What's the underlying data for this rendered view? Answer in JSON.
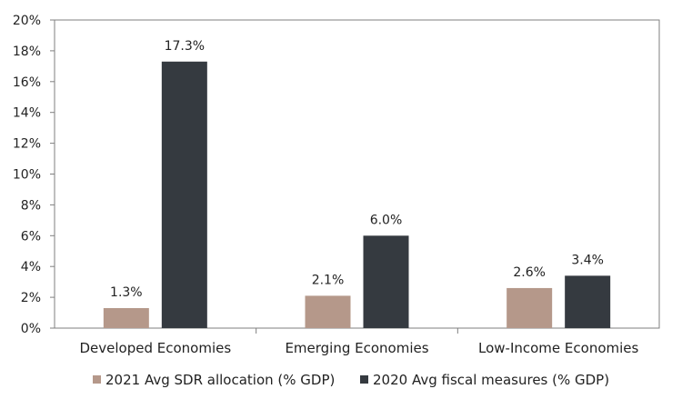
{
  "chart_data": {
    "type": "bar",
    "categories": [
      "Developed Economies",
      "Emerging Economies",
      "Low-Income Economies"
    ],
    "series": [
      {
        "name": "2021 Avg SDR allocation (% GDP)",
        "values": [
          1.3,
          2.1,
          2.6
        ],
        "labels": [
          "1.3%",
          "2.1%",
          "2.6%"
        ],
        "color": "#b5988a"
      },
      {
        "name": "2020 Avg fiscal measures (% GDP)",
        "values": [
          17.3,
          6.0,
          3.4
        ],
        "labels": [
          "17.3%",
          "6.0%",
          "3.4%"
        ],
        "color": "#353a40"
      }
    ],
    "ylim": [
      0,
      20
    ],
    "yticks": [
      0,
      2,
      4,
      6,
      8,
      10,
      12,
      14,
      16,
      18,
      20
    ],
    "ytick_labels": [
      "0%",
      "2%",
      "4%",
      "6%",
      "8%",
      "10%",
      "12%",
      "14%",
      "16%",
      "18%",
      "20%"
    ],
    "grid": false,
    "legend_position": "bottom"
  }
}
